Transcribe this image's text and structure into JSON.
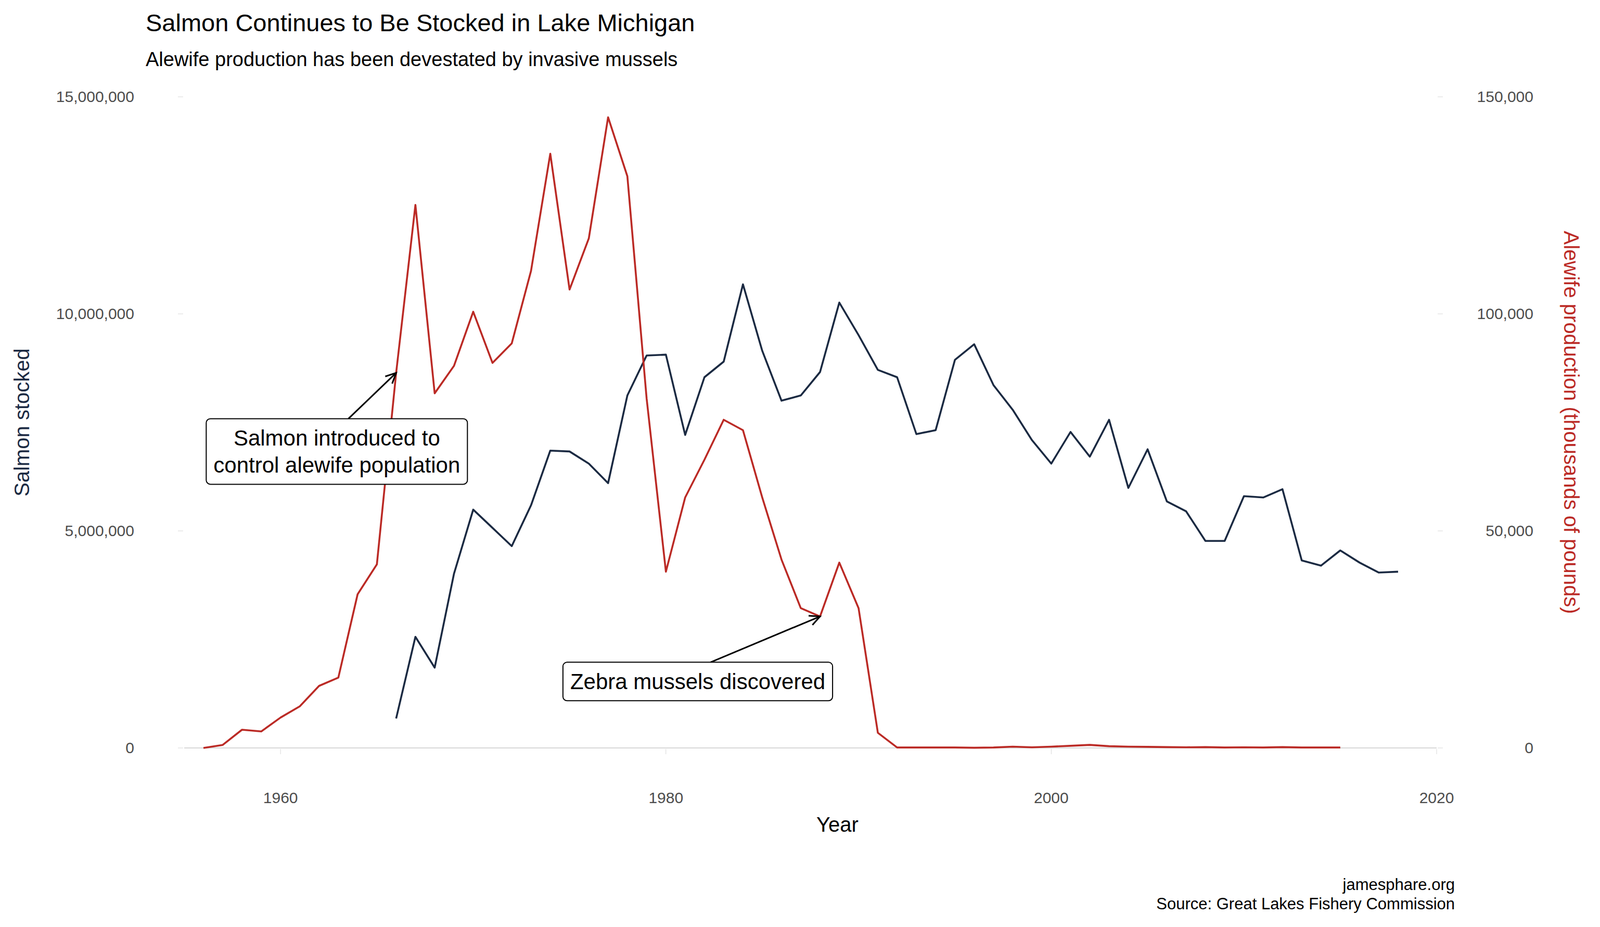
{
  "chart_data": {
    "type": "line",
    "title": "Salmon Continues to Be Stocked in Lake Michigan",
    "subtitle": "Alewife production has been devestated by invasive mussels",
    "x_label": "Year",
    "y_label": "Salmon stocked",
    "y2_label": "Alewife production (thousands of pounds)",
    "caption": [
      "jamesphare.org",
      "Source: Great Lakes Fishery Commission"
    ],
    "grid": false,
    "xlim": [
      1955,
      2020
    ],
    "xticks": [
      1960,
      1980,
      2000,
      2020
    ],
    "ylim": [
      0,
      15000000
    ],
    "yticks": [
      0,
      {
        "value": 5000000,
        "label": "5,000,000"
      },
      {
        "value": 10000000,
        "label": "10,000,000"
      },
      {
        "value": 15000000,
        "label": "15,000,000"
      }
    ],
    "y2lim": [
      0,
      150000
    ],
    "y2ticks": [
      0,
      {
        "value": 50000,
        "label": "50,000"
      },
      {
        "value": 100000,
        "label": "100,000"
      },
      {
        "value": 150000,
        "label": "150,000"
      }
    ],
    "x": [
      1956,
      1957,
      1958,
      1959,
      1960,
      1961,
      1962,
      1963,
      1964,
      1965,
      1966,
      1967,
      1968,
      1969,
      1970,
      1971,
      1972,
      1973,
      1974,
      1975,
      1976,
      1977,
      1978,
      1979,
      1980,
      1981,
      1982,
      1983,
      1984,
      1985,
      1986,
      1987,
      1988,
      1989,
      1990,
      1991,
      1992,
      1993,
      1994,
      1995,
      1996,
      1997,
      1998,
      1999,
      2000,
      2001,
      2002,
      2003,
      2004,
      2005,
      2006,
      2007,
      2008,
      2009,
      2010,
      2011,
      2012,
      2013,
      2014,
      2015,
      2016,
      2017,
      2018
    ],
    "series": [
      {
        "name": "Salmon stocked",
        "color": "#1b2a42",
        "axis": "y",
        "values": [
          null,
          null,
          null,
          null,
          null,
          null,
          null,
          null,
          null,
          null,
          680000,
          2560000,
          1850000,
          4010000,
          5490000,
          5070000,
          4650000,
          5590000,
          6850000,
          6830000,
          6550000,
          6100000,
          8120000,
          9040000,
          9060000,
          7210000,
          8540000,
          8900000,
          10680000,
          9150000,
          8000000,
          8120000,
          8660000,
          10260000,
          9510000,
          8710000,
          8540000,
          7230000,
          7320000,
          8940000,
          9300000,
          8360000,
          7790000,
          7090000,
          6550000,
          7280000,
          6710000,
          7560000,
          5990000,
          6880000,
          5680000,
          5450000,
          4770000,
          4770000,
          5800000,
          5770000,
          5960000,
          4320000,
          4200000,
          4550000,
          4270000,
          4040000,
          4060000
        ]
      },
      {
        "name": "Alewife production",
        "color": "#bb2a25",
        "axis": "y2",
        "values": [
          0,
          700,
          4200,
          3800,
          7000,
          9600,
          14300,
          16200,
          35400,
          42300,
          86400,
          125100,
          81700,
          88000,
          100500,
          88700,
          93200,
          109900,
          136900,
          105600,
          117400,
          145300,
          131700,
          80500,
          40600,
          57700,
          66400,
          75600,
          73200,
          57700,
          43400,
          32200,
          30300,
          42700,
          32200,
          3500,
          100,
          100,
          100,
          100,
          50,
          100,
          300,
          150,
          300,
          500,
          700,
          400,
          300,
          250,
          200,
          150,
          200,
          100,
          150,
          100,
          200,
          100,
          100,
          100,
          null,
          null,
          null
        ]
      }
    ],
    "annotations": [
      {
        "text": [
          "Salmon introduced to",
          "control alewife population"
        ],
        "x": 1966,
        "y": 86400,
        "axis": "y2"
      },
      {
        "text": [
          "Zebra mussels discovered"
        ],
        "x": 1988,
        "y": 30300,
        "axis": "y2"
      }
    ]
  }
}
